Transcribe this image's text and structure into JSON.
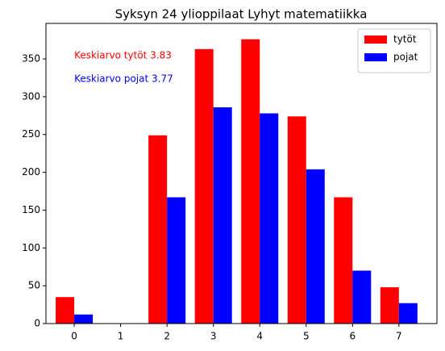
{
  "chart_data": {
    "type": "bar",
    "title": "Syksyn 24 ylioppilaat Lyhyt matematiikka",
    "x": [
      0,
      1,
      2,
      3,
      4,
      5,
      6,
      7
    ],
    "series": [
      {
        "name": "tytöt",
        "color": "#ff0000",
        "values": [
          35,
          0,
          249,
          363,
          376,
          274,
          167,
          48
        ]
      },
      {
        "name": "pojat",
        "color": "#0000ff",
        "values": [
          12,
          0,
          167,
          286,
          278,
          204,
          70,
          27
        ]
      }
    ],
    "annotations": [
      {
        "text": "Keskiarvo tytöt 3.83",
        "color": "#ff0000"
      },
      {
        "text": "Keskiarvo pojat 3.77",
        "color": "#0000ff"
      }
    ],
    "xlim": [
      -0.61,
      7.82
    ],
    "xticks": [
      0,
      1,
      2,
      3,
      4,
      5,
      6,
      7
    ],
    "ylim": [
      0,
      397
    ],
    "yticks": [
      0,
      50,
      100,
      150,
      200,
      250,
      300,
      350
    ],
    "legend": "upper right"
  }
}
